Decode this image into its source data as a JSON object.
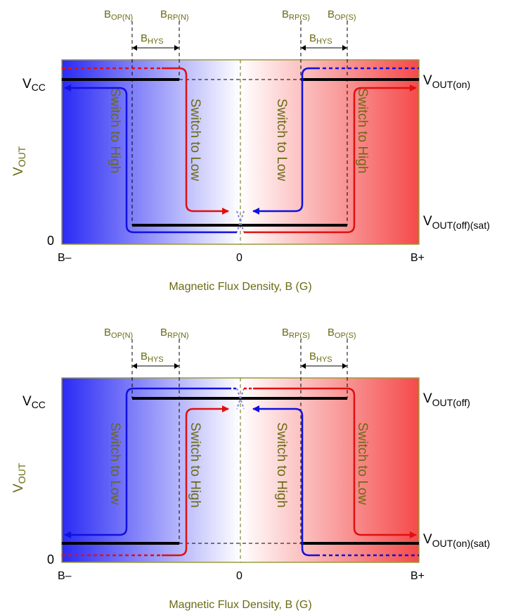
{
  "top": {
    "thresholds": {
      "bop_n": {
        "base": "B",
        "sub": "OP(N)"
      },
      "brp_n": {
        "base": "B",
        "sub": "RP(N)"
      },
      "brp_s": {
        "base": "B",
        "sub": "RP(S)"
      },
      "bop_s": {
        "base": "B",
        "sub": "OP(S)"
      },
      "hys_left": {
        "base": "B",
        "sub": "HYS"
      },
      "hys_right": {
        "base": "B",
        "sub": "HYS"
      }
    },
    "y_axis": {
      "base": "V",
      "sub": "OUT"
    },
    "vcc": {
      "base": "V",
      "sub": "CC"
    },
    "zero_y": "0",
    "right_labels": {
      "upper": {
        "base": "V",
        "sub": "OUT(on)"
      },
      "lower": {
        "base": "V",
        "sub": "OUT(off)(sat)"
      }
    },
    "x_ticks": {
      "left": "B–",
      "center": "0",
      "right": "B+"
    },
    "x_axis_label": "Magnetic Flux Density, B (G)",
    "switch_labels": {
      "left_outer": "Switch to High",
      "left_inner": "Switch to Low",
      "right_inner": "Switch to Low",
      "right_outer": "Switch to High"
    }
  },
  "bottom": {
    "thresholds": {
      "bop_n": {
        "base": "B",
        "sub": "OP(N)"
      },
      "brp_n": {
        "base": "B",
        "sub": "RP(N)"
      },
      "brp_s": {
        "base": "B",
        "sub": "RP(S)"
      },
      "bop_s": {
        "base": "B",
        "sub": "OP(S)"
      },
      "hys_left": {
        "base": "B",
        "sub": "HYS"
      },
      "hys_right": {
        "base": "B",
        "sub": "HYS"
      }
    },
    "y_axis": {
      "base": "V",
      "sub": "OUT"
    },
    "vcc": {
      "base": "V",
      "sub": "CC"
    },
    "zero_y": "0",
    "right_labels": {
      "upper": {
        "base": "V",
        "sub": "OUT(off)"
      },
      "lower": {
        "base": "V",
        "sub": "OUT(on)(sat)"
      }
    },
    "x_ticks": {
      "left": "B–",
      "center": "0",
      "right": "B+"
    },
    "x_axis_label": "Magnetic Flux Density, B (G)",
    "switch_labels": {
      "left_outer": "Switch to Low",
      "left_inner": "Switch to High",
      "right_inner": "Switch to High",
      "right_outer": "Switch to Low"
    }
  },
  "colors": {
    "north": "#2a2af5",
    "south": "#f54a4a",
    "label": "#6b6a14",
    "frame": "#9a9a3a",
    "blue_line": "#1010e0",
    "red_line": "#e01010"
  }
}
